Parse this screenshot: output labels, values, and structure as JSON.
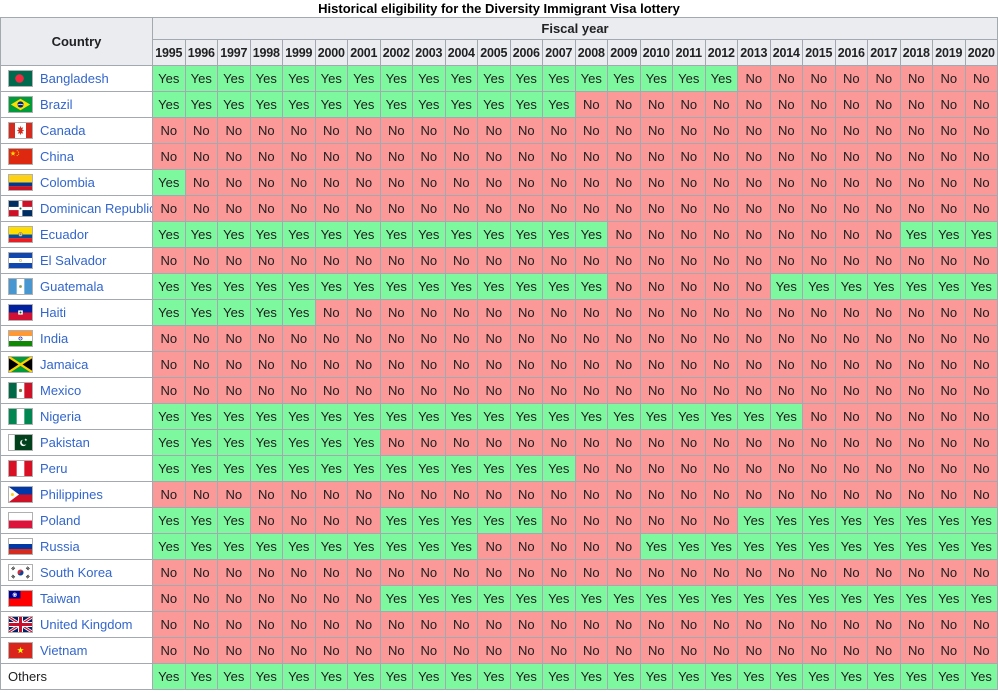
{
  "title": "Historical eligibility for the Diversity Immigrant Visa lottery",
  "chart_data": {
    "type": "table",
    "title": "Historical eligibility for the Diversity Immigrant Visa lottery",
    "row_header": "Country",
    "columns_header": "Fiscal year",
    "cell_values_legend": [
      "Yes",
      "No"
    ],
    "colors": {
      "yes_bg": "#7ef89e",
      "no_bg": "#fb9898",
      "header_bg": "#eaecf0",
      "border": "#a2a9b1",
      "link": "#3366cc"
    },
    "years": [
      1995,
      1996,
      1997,
      1998,
      1999,
      2000,
      2001,
      2002,
      2003,
      2004,
      2005,
      2006,
      2007,
      2008,
      2009,
      2010,
      2011,
      2012,
      2013,
      2014,
      2015,
      2016,
      2017,
      2018,
      2019,
      2020
    ],
    "rows": [
      {
        "country": "Bangladesh",
        "flag": "bd",
        "is_link": true,
        "values": [
          "Yes",
          "Yes",
          "Yes",
          "Yes",
          "Yes",
          "Yes",
          "Yes",
          "Yes",
          "Yes",
          "Yes",
          "Yes",
          "Yes",
          "Yes",
          "Yes",
          "Yes",
          "Yes",
          "Yes",
          "Yes",
          "No",
          "No",
          "No",
          "No",
          "No",
          "No",
          "No",
          "No"
        ]
      },
      {
        "country": "Brazil",
        "flag": "br",
        "is_link": true,
        "values": [
          "Yes",
          "Yes",
          "Yes",
          "Yes",
          "Yes",
          "Yes",
          "Yes",
          "Yes",
          "Yes",
          "Yes",
          "Yes",
          "Yes",
          "Yes",
          "No",
          "No",
          "No",
          "No",
          "No",
          "No",
          "No",
          "No",
          "No",
          "No",
          "No",
          "No",
          "No"
        ]
      },
      {
        "country": "Canada",
        "flag": "ca",
        "is_link": true,
        "values": [
          "No",
          "No",
          "No",
          "No",
          "No",
          "No",
          "No",
          "No",
          "No",
          "No",
          "No",
          "No",
          "No",
          "No",
          "No",
          "No",
          "No",
          "No",
          "No",
          "No",
          "No",
          "No",
          "No",
          "No",
          "No",
          "No"
        ]
      },
      {
        "country": "China",
        "flag": "cn",
        "is_link": true,
        "values": [
          "No",
          "No",
          "No",
          "No",
          "No",
          "No",
          "No",
          "No",
          "No",
          "No",
          "No",
          "No",
          "No",
          "No",
          "No",
          "No",
          "No",
          "No",
          "No",
          "No",
          "No",
          "No",
          "No",
          "No",
          "No",
          "No"
        ]
      },
      {
        "country": "Colombia",
        "flag": "co",
        "is_link": true,
        "values": [
          "Yes",
          "No",
          "No",
          "No",
          "No",
          "No",
          "No",
          "No",
          "No",
          "No",
          "No",
          "No",
          "No",
          "No",
          "No",
          "No",
          "No",
          "No",
          "No",
          "No",
          "No",
          "No",
          "No",
          "No",
          "No",
          "No"
        ]
      },
      {
        "country": "Dominican Republic",
        "flag": "do",
        "is_link": true,
        "values": [
          "No",
          "No",
          "No",
          "No",
          "No",
          "No",
          "No",
          "No",
          "No",
          "No",
          "No",
          "No",
          "No",
          "No",
          "No",
          "No",
          "No",
          "No",
          "No",
          "No",
          "No",
          "No",
          "No",
          "No",
          "No",
          "No"
        ]
      },
      {
        "country": "Ecuador",
        "flag": "ec",
        "is_link": true,
        "values": [
          "Yes",
          "Yes",
          "Yes",
          "Yes",
          "Yes",
          "Yes",
          "Yes",
          "Yes",
          "Yes",
          "Yes",
          "Yes",
          "Yes",
          "Yes",
          "Yes",
          "No",
          "No",
          "No",
          "No",
          "No",
          "No",
          "No",
          "No",
          "No",
          "Yes",
          "Yes",
          "Yes"
        ]
      },
      {
        "country": "El Salvador",
        "flag": "sv",
        "is_link": true,
        "values": [
          "No",
          "No",
          "No",
          "No",
          "No",
          "No",
          "No",
          "No",
          "No",
          "No",
          "No",
          "No",
          "No",
          "No",
          "No",
          "No",
          "No",
          "No",
          "No",
          "No",
          "No",
          "No",
          "No",
          "No",
          "No",
          "No"
        ]
      },
      {
        "country": "Guatemala",
        "flag": "gt",
        "is_link": true,
        "values": [
          "Yes",
          "Yes",
          "Yes",
          "Yes",
          "Yes",
          "Yes",
          "Yes",
          "Yes",
          "Yes",
          "Yes",
          "Yes",
          "Yes",
          "Yes",
          "Yes",
          "No",
          "No",
          "No",
          "No",
          "No",
          "Yes",
          "Yes",
          "Yes",
          "Yes",
          "Yes",
          "Yes",
          "Yes"
        ]
      },
      {
        "country": "Haiti",
        "flag": "ht",
        "is_link": true,
        "values": [
          "Yes",
          "Yes",
          "Yes",
          "Yes",
          "Yes",
          "No",
          "No",
          "No",
          "No",
          "No",
          "No",
          "No",
          "No",
          "No",
          "No",
          "No",
          "No",
          "No",
          "No",
          "No",
          "No",
          "No",
          "No",
          "No",
          "No",
          "No"
        ]
      },
      {
        "country": "India",
        "flag": "in",
        "is_link": true,
        "values": [
          "No",
          "No",
          "No",
          "No",
          "No",
          "No",
          "No",
          "No",
          "No",
          "No",
          "No",
          "No",
          "No",
          "No",
          "No",
          "No",
          "No",
          "No",
          "No",
          "No",
          "No",
          "No",
          "No",
          "No",
          "No",
          "No"
        ]
      },
      {
        "country": "Jamaica",
        "flag": "jm",
        "is_link": true,
        "values": [
          "No",
          "No",
          "No",
          "No",
          "No",
          "No",
          "No",
          "No",
          "No",
          "No",
          "No",
          "No",
          "No",
          "No",
          "No",
          "No",
          "No",
          "No",
          "No",
          "No",
          "No",
          "No",
          "No",
          "No",
          "No",
          "No"
        ]
      },
      {
        "country": "Mexico",
        "flag": "mx",
        "is_link": true,
        "values": [
          "No",
          "No",
          "No",
          "No",
          "No",
          "No",
          "No",
          "No",
          "No",
          "No",
          "No",
          "No",
          "No",
          "No",
          "No",
          "No",
          "No",
          "No",
          "No",
          "No",
          "No",
          "No",
          "No",
          "No",
          "No",
          "No"
        ]
      },
      {
        "country": "Nigeria",
        "flag": "ng",
        "is_link": true,
        "values": [
          "Yes",
          "Yes",
          "Yes",
          "Yes",
          "Yes",
          "Yes",
          "Yes",
          "Yes",
          "Yes",
          "Yes",
          "Yes",
          "Yes",
          "Yes",
          "Yes",
          "Yes",
          "Yes",
          "Yes",
          "Yes",
          "Yes",
          "Yes",
          "No",
          "No",
          "No",
          "No",
          "No",
          "No"
        ]
      },
      {
        "country": "Pakistan",
        "flag": "pk",
        "is_link": true,
        "values": [
          "Yes",
          "Yes",
          "Yes",
          "Yes",
          "Yes",
          "Yes",
          "Yes",
          "No",
          "No",
          "No",
          "No",
          "No",
          "No",
          "No",
          "No",
          "No",
          "No",
          "No",
          "No",
          "No",
          "No",
          "No",
          "No",
          "No",
          "No",
          "No"
        ]
      },
      {
        "country": "Peru",
        "flag": "pe",
        "is_link": true,
        "values": [
          "Yes",
          "Yes",
          "Yes",
          "Yes",
          "Yes",
          "Yes",
          "Yes",
          "Yes",
          "Yes",
          "Yes",
          "Yes",
          "Yes",
          "Yes",
          "No",
          "No",
          "No",
          "No",
          "No",
          "No",
          "No",
          "No",
          "No",
          "No",
          "No",
          "No",
          "No"
        ]
      },
      {
        "country": "Philippines",
        "flag": "ph",
        "is_link": true,
        "values": [
          "No",
          "No",
          "No",
          "No",
          "No",
          "No",
          "No",
          "No",
          "No",
          "No",
          "No",
          "No",
          "No",
          "No",
          "No",
          "No",
          "No",
          "No",
          "No",
          "No",
          "No",
          "No",
          "No",
          "No",
          "No",
          "No"
        ]
      },
      {
        "country": "Poland",
        "flag": "pl",
        "is_link": true,
        "values": [
          "Yes",
          "Yes",
          "Yes",
          "No",
          "No",
          "No",
          "No",
          "Yes",
          "Yes",
          "Yes",
          "Yes",
          "Yes",
          "No",
          "No",
          "No",
          "No",
          "No",
          "No",
          "Yes",
          "Yes",
          "Yes",
          "Yes",
          "Yes",
          "Yes",
          "Yes",
          "Yes"
        ]
      },
      {
        "country": "Russia",
        "flag": "ru",
        "is_link": true,
        "values": [
          "Yes",
          "Yes",
          "Yes",
          "Yes",
          "Yes",
          "Yes",
          "Yes",
          "Yes",
          "Yes",
          "Yes",
          "No",
          "No",
          "No",
          "No",
          "No",
          "Yes",
          "Yes",
          "Yes",
          "Yes",
          "Yes",
          "Yes",
          "Yes",
          "Yes",
          "Yes",
          "Yes",
          "Yes"
        ]
      },
      {
        "country": "South Korea",
        "flag": "kr",
        "is_link": true,
        "values": [
          "No",
          "No",
          "No",
          "No",
          "No",
          "No",
          "No",
          "No",
          "No",
          "No",
          "No",
          "No",
          "No",
          "No",
          "No",
          "No",
          "No",
          "No",
          "No",
          "No",
          "No",
          "No",
          "No",
          "No",
          "No",
          "No"
        ]
      },
      {
        "country": "Taiwan",
        "flag": "tw",
        "is_link": true,
        "values": [
          "No",
          "No",
          "No",
          "No",
          "No",
          "No",
          "No",
          "Yes",
          "Yes",
          "Yes",
          "Yes",
          "Yes",
          "Yes",
          "Yes",
          "Yes",
          "Yes",
          "Yes",
          "Yes",
          "Yes",
          "Yes",
          "Yes",
          "Yes",
          "Yes",
          "Yes",
          "Yes",
          "Yes"
        ]
      },
      {
        "country": "United Kingdom",
        "flag": "gb",
        "is_link": true,
        "values": [
          "No",
          "No",
          "No",
          "No",
          "No",
          "No",
          "No",
          "No",
          "No",
          "No",
          "No",
          "No",
          "No",
          "No",
          "No",
          "No",
          "No",
          "No",
          "No",
          "No",
          "No",
          "No",
          "No",
          "No",
          "No",
          "No"
        ]
      },
      {
        "country": "Vietnam",
        "flag": "vn",
        "is_link": true,
        "values": [
          "No",
          "No",
          "No",
          "No",
          "No",
          "No",
          "No",
          "No",
          "No",
          "No",
          "No",
          "No",
          "No",
          "No",
          "No",
          "No",
          "No",
          "No",
          "No",
          "No",
          "No",
          "No",
          "No",
          "No",
          "No",
          "No"
        ]
      },
      {
        "country": "Others",
        "flag": null,
        "is_link": false,
        "values": [
          "Yes",
          "Yes",
          "Yes",
          "Yes",
          "Yes",
          "Yes",
          "Yes",
          "Yes",
          "Yes",
          "Yes",
          "Yes",
          "Yes",
          "Yes",
          "Yes",
          "Yes",
          "Yes",
          "Yes",
          "Yes",
          "Yes",
          "Yes",
          "Yes",
          "Yes",
          "Yes",
          "Yes",
          "Yes",
          "Yes"
        ]
      }
    ]
  }
}
